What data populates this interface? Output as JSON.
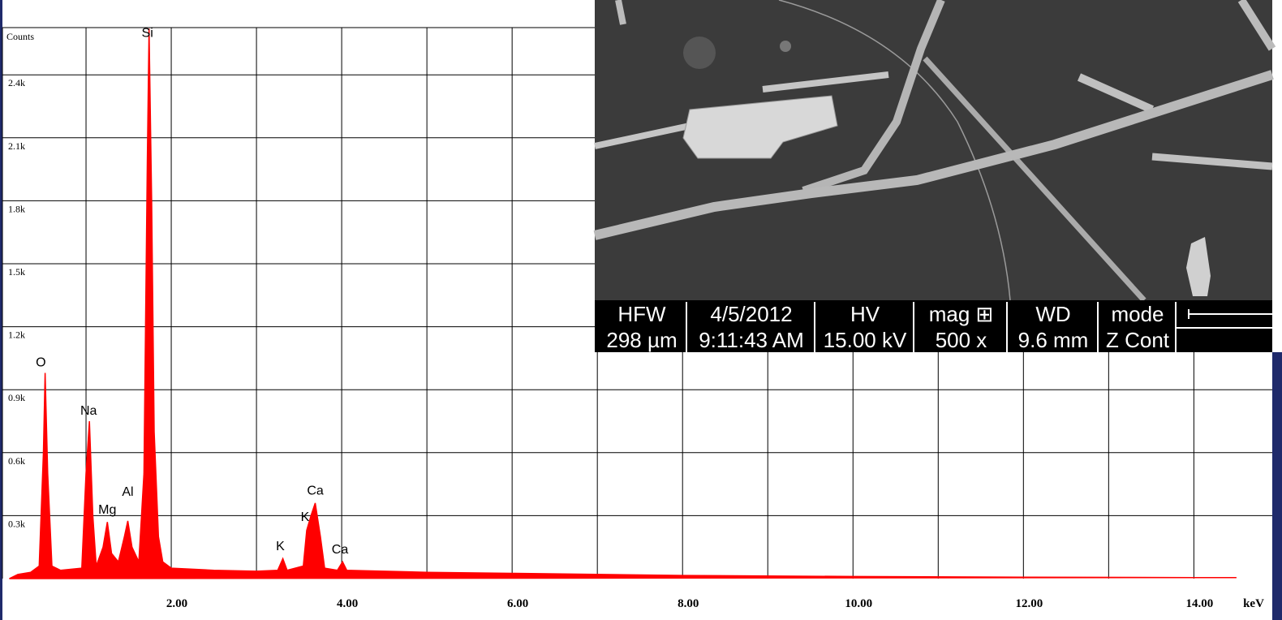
{
  "chart_data": {
    "type": "area",
    "y_label": "Counts",
    "x_label": "keV",
    "color": "#ff0000",
    "xlim": [
      0,
      14.92
    ],
    "ylim": [
      0,
      2625
    ],
    "xticks": [
      {
        "value": 2,
        "label": "2.00"
      },
      {
        "value": 4,
        "label": "4.00"
      },
      {
        "value": 6,
        "label": "6.00"
      },
      {
        "value": 8,
        "label": "8.00"
      },
      {
        "value": 10,
        "label": "10.00"
      },
      {
        "value": 12,
        "label": "12.00"
      },
      {
        "value": 14,
        "label": "14.00"
      }
    ],
    "x_grid": [
      1,
      3,
      5,
      7,
      9,
      11,
      13
    ],
    "yticks": [
      {
        "value": 300,
        "label": "0.3k"
      },
      {
        "value": 600,
        "label": "0.6k"
      },
      {
        "value": 900,
        "label": "0.9k"
      },
      {
        "value": 1200,
        "label": "1.2k"
      },
      {
        "value": 1500,
        "label": "1.5k"
      },
      {
        "value": 1800,
        "label": "1.8k"
      },
      {
        "value": 2100,
        "label": "2.1k"
      },
      {
        "value": 2400,
        "label": "2.4k"
      }
    ],
    "grid": true,
    "x": [
      0.1,
      0.2,
      0.35,
      0.45,
      0.5,
      0.52,
      0.55,
      0.6,
      0.7,
      0.95,
      1.0,
      1.04,
      1.08,
      1.12,
      1.2,
      1.25,
      1.3,
      1.38,
      1.45,
      1.49,
      1.54,
      1.62,
      1.68,
      1.72,
      1.74,
      1.77,
      1.8,
      1.85,
      1.9,
      2.0,
      2.5,
      3.0,
      3.25,
      3.31,
      3.36,
      3.55,
      3.59,
      3.64,
      3.69,
      3.75,
      3.8,
      3.95,
      4.01,
      4.06,
      5.0,
      6.0,
      8.0,
      10.0,
      12.0,
      14.0,
      14.5
    ],
    "values": [
      0,
      20,
      30,
      60,
      600,
      980,
      500,
      60,
      40,
      50,
      500,
      750,
      300,
      60,
      150,
      270,
      120,
      80,
      200,
      275,
      150,
      80,
      500,
      2000,
      2620,
      1800,
      700,
      200,
      80,
      50,
      40,
      35,
      40,
      95,
      40,
      60,
      230,
      300,
      360,
      200,
      50,
      40,
      80,
      40,
      30,
      25,
      15,
      10,
      7,
      5,
      5
    ],
    "peak_labels": [
      {
        "label": "O",
        "x": 0.47,
        "y": 1010
      },
      {
        "label": "Na",
        "x": 1.03,
        "y": 780
      },
      {
        "label": "Mg",
        "x": 1.25,
        "y": 310
      },
      {
        "label": "Al",
        "x": 1.49,
        "y": 395
      },
      {
        "label": "Si",
        "x": 1.72,
        "y": 2580
      },
      {
        "label": "K",
        "x": 3.28,
        "y": 135
      },
      {
        "label": "K",
        "x": 3.57,
        "y": 275
      },
      {
        "label": "Ca",
        "x": 3.69,
        "y": 400
      },
      {
        "label": "Ca",
        "x": 3.98,
        "y": 120
      }
    ]
  },
  "sem_info": [
    {
      "label": "HFW",
      "value": "298 µm"
    },
    {
      "label": "4/5/2012",
      "value": "9:11:43 AM"
    },
    {
      "label": "HV",
      "value": "15.00 kV"
    },
    {
      "label": "mag ⊞",
      "value": "500 x"
    },
    {
      "label": "WD",
      "value": "9.6 mm"
    },
    {
      "label": "mode",
      "value": "Z Cont"
    }
  ]
}
